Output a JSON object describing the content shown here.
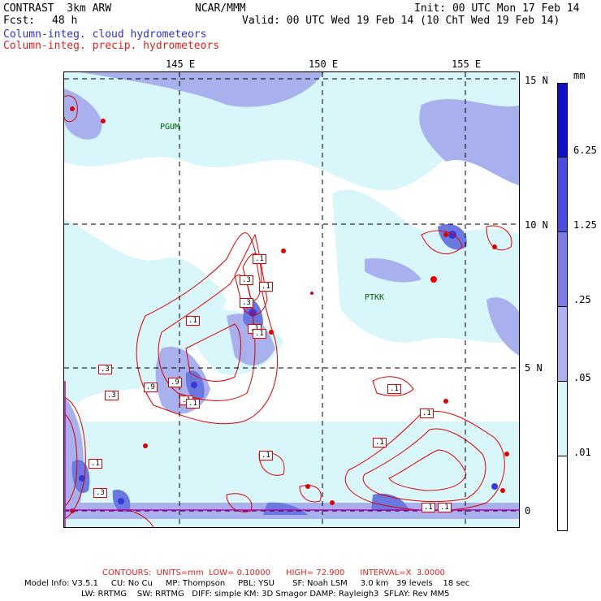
{
  "header": {
    "model": "CONTRAST  3km ARW",
    "center": "NCAR/MMM",
    "init": "Init: 00 UTC Mon 17 Feb 14",
    "fcst_label": "Fcst:",
    "fcst_value": "48 h",
    "valid": "Valid: 00 UTC Wed 19 Feb 14 (10 ChT Wed 19 Feb 14)",
    "field1": "Column-integ. cloud hydrometeors",
    "field2": "Column-integ. precip. hydrometeors"
  },
  "map": {
    "lon_labels": [
      "145 E",
      "150 E",
      "155 E"
    ],
    "lat_labels": [
      "15 N",
      "10 N",
      "5 N",
      "0"
    ],
    "stations": [
      {
        "name": "PGUM"
      },
      {
        "name": "PTKK"
      }
    ],
    "contour_labels": [
      ".1",
      ".3",
      ".1",
      ".3",
      ".1",
      ".1",
      ".1",
      ".3",
      ".9",
      ".9",
      ".3",
      ".1",
      ".1",
      ".1",
      ".1",
      ".1",
      ".3",
      ".1",
      ".1",
      ".1",
      ".1"
    ],
    "colors": {
      "cloud_light": "#d9f6fb",
      "cloud_mid": "#a8b0ee",
      "cloud_dark": "#6a78e0",
      "cloud_deep": "#3838d8",
      "precip": "#e00000"
    }
  },
  "legend": {
    "unit": "mm",
    "ticks": [
      "6.25",
      "1.25",
      ".25",
      ".05",
      ".01"
    ],
    "colors": [
      "#1010c8",
      "#4c4ce0",
      "#7a7ae8",
      "#aeb2f2",
      "#d8f6fa",
      "#ffffff"
    ]
  },
  "footer": {
    "contours": "CONTOURS:  UNITS=mm  LOW= 0.10000      HIGH= 72.900      INTERVAL=X  3.0000",
    "model_info_1": "Model Info: V3.5.1     CU: No Cu     MP: Thompson     PBL: YSU       SF: Noah LSM     3.0 km   39 levels    18 sec",
    "model_info_2": "LW: RRTMG    SW: RRTMG   DIFF: simple KM: 3D Smagor DAMP: Rayleigh3  SFLAY: Rev MM5"
  }
}
